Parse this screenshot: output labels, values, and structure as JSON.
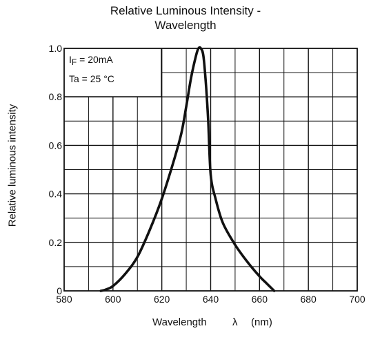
{
  "chart_data": {
    "type": "line",
    "title_line1": "Relative Luminous Intensity -",
    "title_line2": "Wavelength",
    "ylabel": "Relative luminous intensity",
    "xlabel_word": "Wavelength",
    "xlabel_symbol": "λ",
    "xlabel_unit": "(nm)",
    "xlim": [
      580,
      700
    ],
    "ylim": [
      0,
      1.0
    ],
    "x_ticks": [
      "580",
      "600",
      "620",
      "640",
      "660",
      "680",
      "700"
    ],
    "y_ticks": [
      "0",
      "0.2",
      "0.4",
      "0.6",
      "0.8",
      "1.0"
    ],
    "grid": true,
    "legend": {
      "if_prefix": "I",
      "if_sub": "F",
      "if_value": " = 20mA",
      "ta": "Ta = 25 °C"
    },
    "series": [
      {
        "x": [
          595,
          597,
          600,
          605,
          610,
          615,
          620,
          625,
          628,
          630,
          632,
          634,
          635,
          636,
          637,
          638,
          639,
          640,
          642,
          645,
          650,
          655,
          660,
          663,
          666
        ],
        "y": [
          0.0,
          0.005,
          0.02,
          0.07,
          0.14,
          0.25,
          0.38,
          0.54,
          0.65,
          0.76,
          0.88,
          0.97,
          1.0,
          1.0,
          0.97,
          0.86,
          0.7,
          0.48,
          0.38,
          0.28,
          0.19,
          0.12,
          0.06,
          0.03,
          0.0
        ]
      }
    ]
  }
}
